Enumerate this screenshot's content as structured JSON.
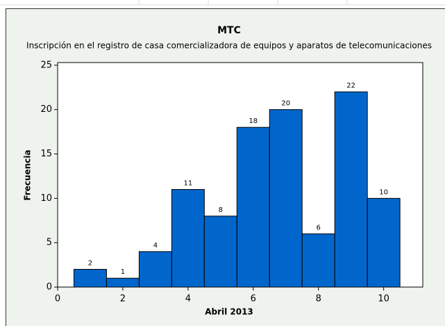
{
  "chart_data": {
    "type": "histogram",
    "title": "MTC",
    "subtitle": "Inscripción en el registro de casa comercializadora de equipos y aparatos de telecomunicaciones",
    "x_label": "Abril 2013",
    "y_label": "Frecuencia",
    "bins": [
      0.5,
      1.5,
      2.5,
      3.5,
      4.5,
      5.5,
      6.5,
      7.5,
      8.5,
      9.5,
      10.5
    ],
    "values": [
      2,
      1,
      4,
      11,
      8,
      18,
      20,
      6,
      22,
      10
    ],
    "color": "#0066cc",
    "xlim": [
      0,
      11.2
    ],
    "xticks": [
      0,
      2,
      4,
      6,
      8,
      10
    ],
    "ylim": [
      0,
      25.3
    ],
    "yticks": [
      0,
      5,
      10,
      15,
      20,
      25
    ]
  }
}
